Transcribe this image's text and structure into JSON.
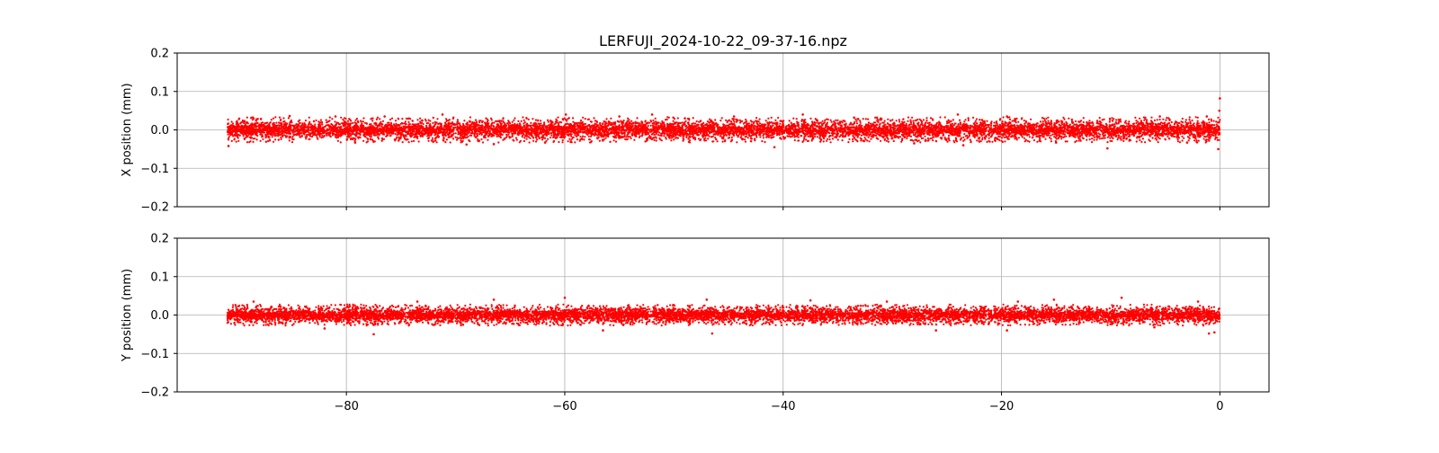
{
  "chart_data": {
    "type": "scatter",
    "title": "LERFUJI_2024-10-22_09-37-16.npz",
    "shared_x": {
      "xlim": [
        -95.5,
        4.5
      ],
      "ticks": [
        -80,
        -60,
        -40,
        -20,
        0
      ],
      "tick_labels": [
        "−80",
        "−60",
        "−40",
        "−20",
        "0"
      ],
      "data_range": [
        -90.9,
        0.0
      ],
      "xlabel": ""
    },
    "grid": true,
    "color": "#ff0000",
    "panels": [
      {
        "id": "x-position",
        "ylabel": "X position (mm)",
        "ylim": [
          -0.2,
          0.2
        ],
        "yticks": [
          -0.2,
          -0.1,
          0.0,
          0.1,
          0.2
        ],
        "ytick_labels": [
          "−0.2",
          "−0.1",
          "0.0",
          "0.1",
          "0.2"
        ],
        "band": {
          "core_halfwidth": 0.018,
          "outlier_halfwidth": 0.042
        },
        "points": [
          [
            -90.8,
            -0.042
          ],
          [
            -88.5,
            0.03
          ],
          [
            -85.2,
            0.036
          ],
          [
            -81.0,
            0.035
          ],
          [
            -79.2,
            -0.033
          ],
          [
            -76.5,
            0.035
          ],
          [
            -71.2,
            0.04
          ],
          [
            -69.0,
            -0.038
          ],
          [
            -66.5,
            -0.037
          ],
          [
            -61.8,
            -0.033
          ],
          [
            -59.9,
            0.04
          ],
          [
            -55.0,
            0.035
          ],
          [
            -52.0,
            0.04
          ],
          [
            -49.0,
            0.03
          ],
          [
            -44.5,
            0.035
          ],
          [
            -40.8,
            -0.045
          ],
          [
            -38.2,
            0.04
          ],
          [
            -33.5,
            0.032
          ],
          [
            -28.0,
            -0.035
          ],
          [
            -24.0,
            0.04
          ],
          [
            -23.5,
            -0.04
          ],
          [
            -19.5,
            0.035
          ],
          [
            -15.0,
            -0.033
          ],
          [
            -10.3,
            -0.048
          ],
          [
            -5.5,
            0.035
          ],
          [
            -3.0,
            -0.033
          ],
          [
            -1.2,
            0.035
          ],
          [
            -0.15,
            -0.05
          ],
          [
            0.0,
            0.082
          ],
          [
            -0.05,
            0.05
          ]
        ]
      },
      {
        "id": "y-position",
        "ylabel": "Y position (mm)",
        "ylim": [
          -0.2,
          0.2
        ],
        "yticks": [
          -0.2,
          -0.1,
          0.0,
          0.1,
          0.2
        ],
        "ytick_labels": [
          "−0.2",
          "−0.1",
          "0.0",
          "0.1",
          "0.2"
        ],
        "band": {
          "core_halfwidth": 0.015,
          "outlier_halfwidth": 0.035
        },
        "points": [
          [
            -88.5,
            0.035
          ],
          [
            -82.0,
            -0.035
          ],
          [
            -77.5,
            -0.05
          ],
          [
            -73.5,
            0.035
          ],
          [
            -66.5,
            0.04
          ],
          [
            -60.0,
            0.045
          ],
          [
            -56.5,
            -0.04
          ],
          [
            -47.0,
            0.04
          ],
          [
            -46.5,
            -0.048
          ],
          [
            -37.5,
            0.038
          ],
          [
            -30.5,
            0.035
          ],
          [
            -26.0,
            -0.04
          ],
          [
            -19.5,
            -0.04
          ],
          [
            -18.5,
            0.035
          ],
          [
            -15.2,
            0.04
          ],
          [
            -9.0,
            0.045
          ],
          [
            -6.0,
            -0.032
          ],
          [
            -2.0,
            0.035
          ],
          [
            -1.0,
            -0.048
          ],
          [
            -0.5,
            -0.045
          ]
        ]
      }
    ]
  }
}
